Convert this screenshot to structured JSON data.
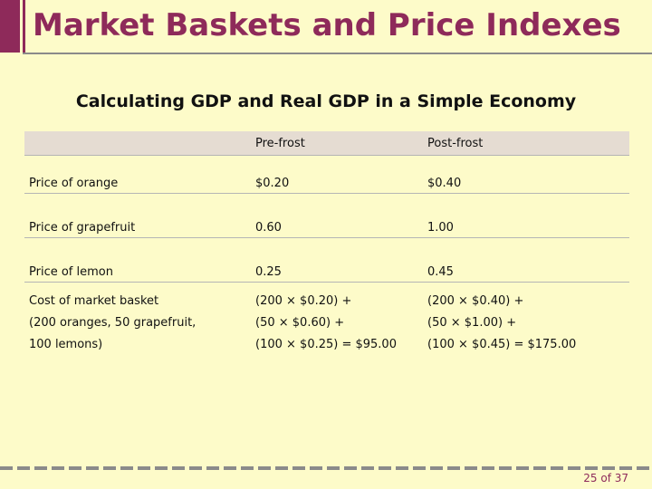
{
  "slide": {
    "title": "Market Baskets and Price Indexes",
    "subtitle": "Calculating GDP and Real GDP in a Simple Economy",
    "page_number": "25 of 37",
    "accent_color": "#8e2a5a"
  },
  "table": {
    "headers": [
      "",
      "Pre-frost",
      "Post-frost"
    ],
    "rows": [
      [
        "Price of orange",
        "$0.20",
        "$0.40"
      ],
      [
        "Price of grapefruit",
        "0.60",
        "1.00"
      ],
      [
        "Price of lemon",
        "0.25",
        "0.45"
      ]
    ],
    "basket": {
      "col1": [
        "Cost of market basket",
        "(200 oranges, 50 grapefruit,",
        "100 lemons)"
      ],
      "col2": [
        "(200 × $0.20) +",
        "(50 × $0.60) +",
        "(100 × $0.25) = $95.00"
      ],
      "col3": [
        "(200 × $0.40) +",
        "(50 × $1.00) +",
        "(100 × $0.45) = $175.00"
      ]
    }
  }
}
